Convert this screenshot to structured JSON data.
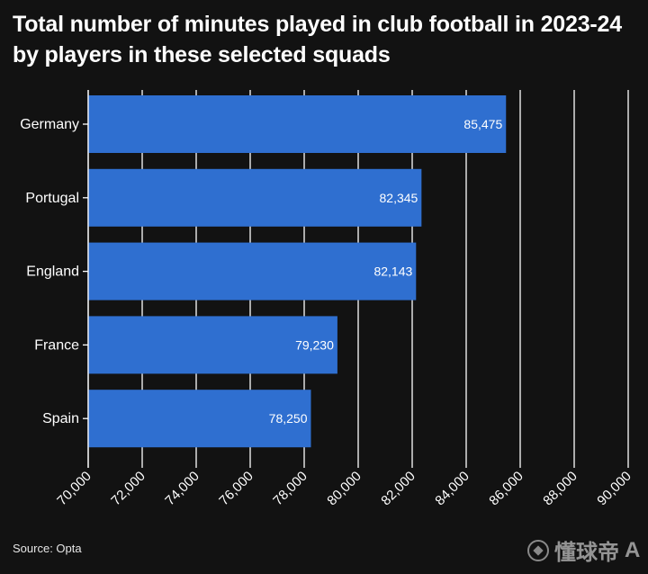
{
  "title": "Total number of minutes played in club football in 2023-24 by players in these selected squads",
  "source": "Source: Opta",
  "watermark": {
    "text": "懂球帝",
    "brand_mark": "A"
  },
  "colors": {
    "bar": "#2f6fd0",
    "background": "#121212",
    "grid": "#ffffff",
    "text": "#ffffff"
  },
  "chart_data": {
    "type": "bar",
    "orientation": "horizontal",
    "title": "Total number of minutes played in club football in 2023-24 by players in these selected squads",
    "categories": [
      "Germany",
      "Portugal",
      "England",
      "France",
      "Spain"
    ],
    "values": [
      85475,
      82345,
      82143,
      79230,
      78250
    ],
    "value_labels": [
      "85,475",
      "82,345",
      "82,143",
      "79,230",
      "78,250"
    ],
    "xlim": [
      70000,
      90000
    ],
    "xticks": [
      70000,
      72000,
      74000,
      76000,
      78000,
      80000,
      82000,
      84000,
      86000,
      88000,
      90000
    ],
    "xtick_labels": [
      "70,000",
      "72,000",
      "74,000",
      "76,000",
      "78,000",
      "80,000",
      "82,000",
      "84,000",
      "86,000",
      "88,000",
      "90,000"
    ],
    "xlabel": "",
    "ylabel": "",
    "grid": true
  }
}
